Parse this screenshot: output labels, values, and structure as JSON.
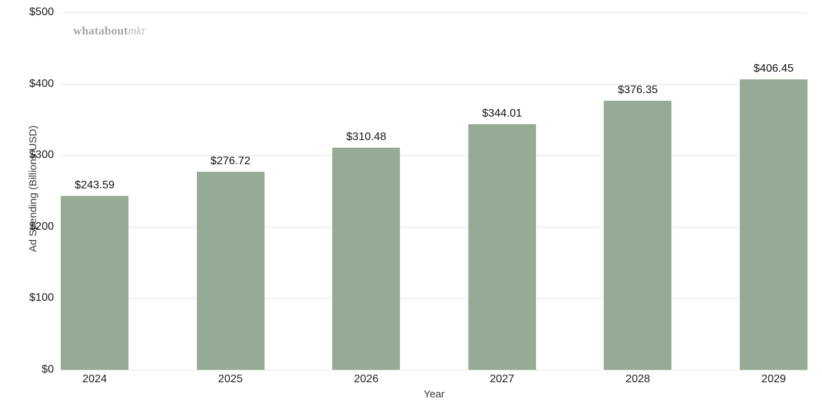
{
  "watermark": {
    "bold_text": "whatabout",
    "italic_text": "mkt"
  },
  "chart_data": {
    "type": "bar",
    "categories": [
      "2024",
      "2025",
      "2026",
      "2027",
      "2028",
      "2029"
    ],
    "values": [
      243.59,
      276.72,
      310.48,
      344.01,
      376.35,
      406.45
    ],
    "value_labels": [
      "$243.59",
      "$276.72",
      "$310.48",
      "$344.01",
      "$376.35",
      "$406.45"
    ],
    "xlabel": "Year",
    "ylabel": "Ad Spending (Billions USD)",
    "ylim": [
      0,
      500
    ],
    "yticks": {
      "values": [
        0,
        100,
        200,
        300,
        400,
        500
      ],
      "labels": [
        "$0",
        "$100",
        "$200",
        "$300",
        "$400",
        "$500"
      ]
    },
    "grid": "horizontal",
    "legend": "none",
    "bar_color": "#96ab95",
    "gridline_color": "#e5e5e5"
  }
}
